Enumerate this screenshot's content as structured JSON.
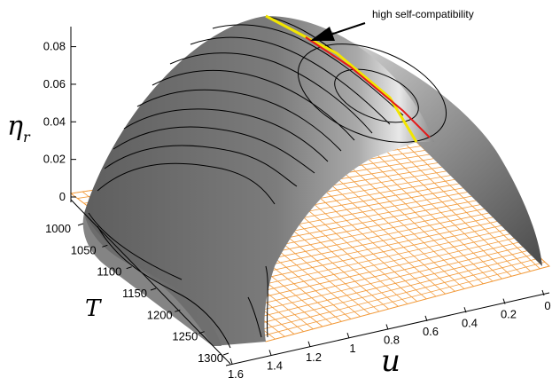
{
  "chart_data": {
    "type": "surface-3d",
    "zlabel": "η",
    "zlabel_sub": "r",
    "ylabel": "T",
    "xlabel": "u",
    "z_ticks": [
      "0",
      "0.02",
      "0.04",
      "0.06",
      "0.08"
    ],
    "y_ticks": [
      "1000",
      "1050",
      "1100",
      "1150",
      "1200",
      "1250",
      "1300"
    ],
    "x_ticks": [
      "1.6",
      "1.4",
      "1.2",
      "1",
      "0.8",
      "0.6",
      "0.4",
      "0.2",
      "0"
    ],
    "zlim": [
      0,
      0.085
    ],
    "ylim": [
      1000,
      1300
    ],
    "xlim": [
      0,
      1.6
    ],
    "annotation": "high self-compatibility",
    "surface_color": "#7a7a7a",
    "base_plane_color": "#f29a3a",
    "ridge_line_colors": [
      "#f2e600",
      "#e41a1a"
    ]
  }
}
